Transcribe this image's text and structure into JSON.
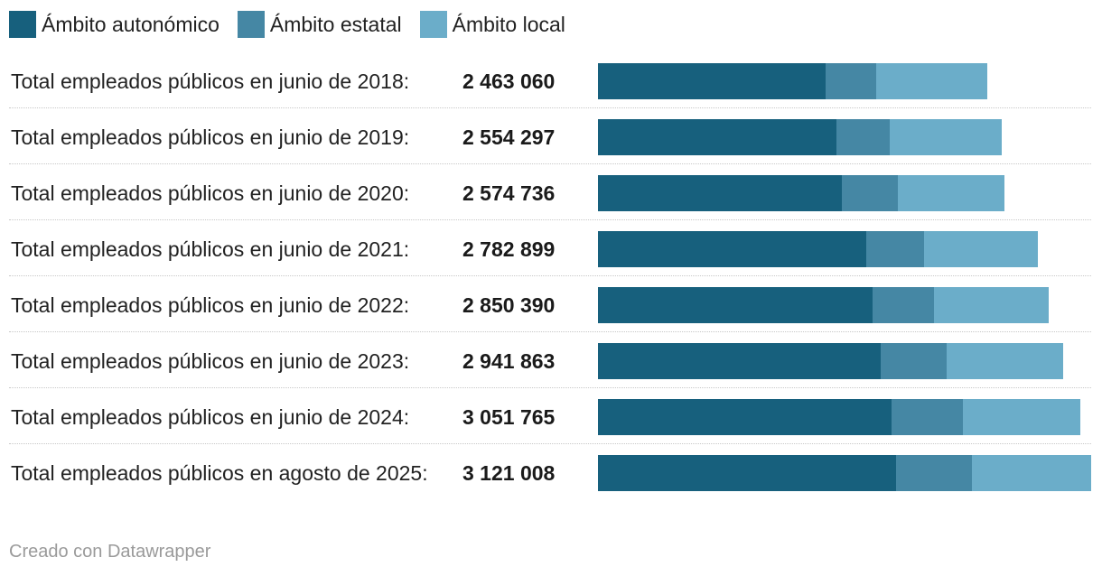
{
  "chart_data": {
    "type": "bar",
    "stacked": true,
    "orientation": "horizontal",
    "title": "",
    "xlabel": "",
    "ylabel": "",
    "legend_placement": "top-left",
    "categories": [
      "Total empleados públicos en junio de 2018:",
      "Total empleados públicos en junio de 2019:",
      "Total empleados públicos en junio de 2020:",
      "Total empleados públicos en junio de 2021:",
      "Total empleados públicos en junio de 2022:",
      "Total empleados públicos en junio de 2023:",
      "Total empleados públicos en junio de 2024:",
      "Total empleados públicos en agosto de 2025:"
    ],
    "totals": [
      2463060,
      2554297,
      2574736,
      2782899,
      2850390,
      2941863,
      3051765,
      3121008
    ],
    "totals_text": [
      "2 463 060",
      "2 554 297",
      "2 574 736",
      "2 782 899",
      "2 850 390",
      "2 941 863",
      "3 051 765",
      "3 121 008"
    ],
    "series": [
      {
        "name": "Ámbito autonómico",
        "color": "#17607d",
        "values": [
          1440000,
          1510000,
          1545000,
          1695000,
          1735000,
          1790000,
          1860000,
          1885000
        ]
      },
      {
        "name": "Ámbito estatal",
        "color": "#4587a4",
        "values": [
          320000,
          335000,
          355000,
          370000,
          390000,
          415000,
          450000,
          480000
        ]
      },
      {
        "name": "Ámbito local",
        "color": "#6badc9",
        "values": [
          703060,
          709297,
          674736,
          717899,
          725390,
          736863,
          741765,
          756008
        ]
      }
    ],
    "xlim": [
      0,
      3121008
    ]
  },
  "credit": "Creado con Datawrapper"
}
